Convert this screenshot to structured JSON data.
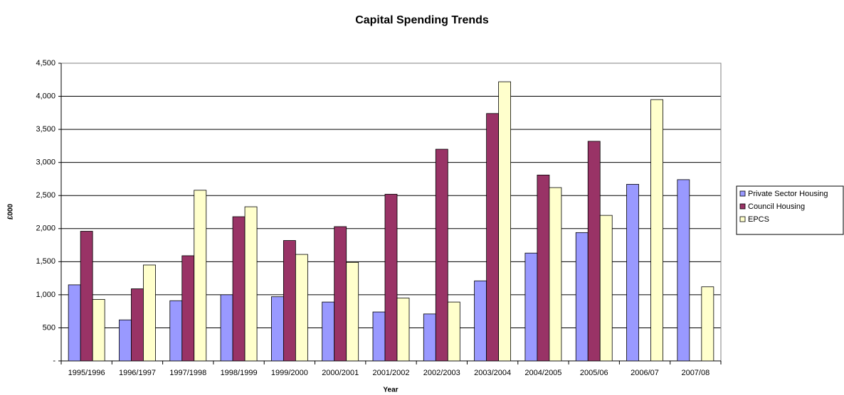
{
  "chart_data": {
    "type": "bar",
    "title": "Capital Spending Trends",
    "x_label": "Year",
    "y_label": "£000",
    "categories": [
      "1995/1996",
      "1996/1997",
      "1997/1998",
      "1998/1999",
      "1999/2000",
      "2000/2001",
      "2001/2002",
      "2002/2003",
      "2003/2004",
      "2004/2005",
      "2005/06",
      "2006/07",
      "2007/08"
    ],
    "series": [
      {
        "name": "Private Sector Housing",
        "color": "#9999ff",
        "values": [
          1150,
          620,
          910,
          1000,
          970,
          890,
          740,
          710,
          1210,
          1630,
          1940,
          2670,
          2740
        ]
      },
      {
        "name": "Council Housing",
        "color": "#993366",
        "values": [
          1960,
          1090,
          1590,
          2180,
          1820,
          2030,
          2520,
          3200,
          3740,
          2810,
          3320,
          null,
          null
        ]
      },
      {
        "name": "EPCS",
        "color": "#ffffcc",
        "values": [
          930,
          1450,
          2580,
          2330,
          1610,
          1490,
          950,
          890,
          4220,
          2620,
          2200,
          3950,
          1120
        ]
      }
    ],
    "ylim": [
      0,
      4500
    ],
    "yticks": [
      {
        "value": 0,
        "label": "-"
      },
      500,
      {
        "value": 1000,
        "label": "1,000"
      },
      {
        "value": 1500,
        "label": "1,500"
      },
      {
        "value": 2000,
        "label": "2,000"
      },
      {
        "value": 2500,
        "label": "2,500"
      },
      {
        "value": 3000,
        "label": "3,000"
      },
      {
        "value": 3500,
        "label": "3,500"
      },
      {
        "value": 4000,
        "label": "4,000"
      },
      {
        "value": 4500,
        "label": "4,500"
      }
    ],
    "grid": true,
    "legend": "right"
  }
}
